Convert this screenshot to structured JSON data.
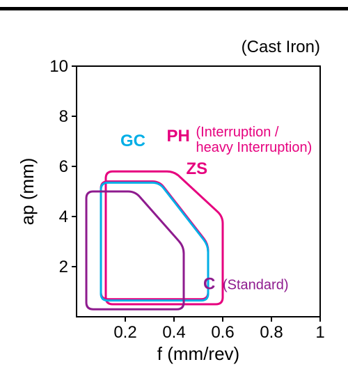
{
  "chart": {
    "type": "region-outline",
    "material_label": "(Cast Iron)",
    "xlabel": "f (mm/rev)",
    "ylabel": "ap (mm)",
    "xlim": [
      0,
      1.0
    ],
    "ylim": [
      0,
      10
    ],
    "xticks": [
      0.2,
      0.4,
      0.6,
      0.8,
      1.0
    ],
    "yticks": [
      2,
      4,
      6,
      8,
      10
    ],
    "axis_fontsize": 26,
    "tick_fontsize": 24,
    "subtitle_fontsize": 24,
    "axis_color": "#000000",
    "background_color": "#ffffff",
    "stroke_width": 3,
    "corner_radius": 10,
    "series": [
      {
        "id": "PH",
        "label": "PH",
        "sublabel": "(Interruption /\nheavy Interruption)",
        "color": "#e6007e",
        "label_pos": {
          "x": 0.37,
          "y": 7.0
        },
        "sublabel_pos": {
          "x": 0.49,
          "y": 7.2
        },
        "polygon": [
          {
            "x": 0.12,
            "y": 0.5
          },
          {
            "x": 0.12,
            "y": 5.8
          },
          {
            "x": 0.4,
            "y": 5.8
          },
          {
            "x": 0.6,
            "y": 4.0
          },
          {
            "x": 0.6,
            "y": 0.5
          }
        ]
      },
      {
        "id": "ZS",
        "label": "ZS",
        "sublabel": "",
        "color": "#e6007e",
        "label_pos": {
          "x": 0.45,
          "y": 5.7
        },
        "polygon": [
          {
            "x": 0.1,
            "y": 0.7
          },
          {
            "x": 0.1,
            "y": 5.4
          },
          {
            "x": 0.34,
            "y": 5.4
          },
          {
            "x": 0.54,
            "y": 2.9
          },
          {
            "x": 0.54,
            "y": 0.7
          }
        ]
      },
      {
        "id": "GC",
        "label": "GC",
        "sublabel": "",
        "color": "#00aee6",
        "label_pos": {
          "x": 0.18,
          "y": 6.8
        },
        "polygon": [
          {
            "x": 0.1,
            "y": 0.65
          },
          {
            "x": 0.1,
            "y": 5.35
          },
          {
            "x": 0.34,
            "y": 5.35
          },
          {
            "x": 0.54,
            "y": 2.85
          },
          {
            "x": 0.54,
            "y": 0.65
          }
        ]
      },
      {
        "id": "C",
        "label": "C",
        "sublabel": "(Standard)",
        "color": "#8e1b8e",
        "label_pos": {
          "x": 0.52,
          "y": 1.1
        },
        "sublabel_pos": {
          "x": 0.6,
          "y": 1.1
        },
        "polygon": [
          {
            "x": 0.04,
            "y": 0.3
          },
          {
            "x": 0.04,
            "y": 5.0
          },
          {
            "x": 0.24,
            "y": 5.0
          },
          {
            "x": 0.44,
            "y": 2.8
          },
          {
            "x": 0.44,
            "y": 0.3
          }
        ]
      }
    ]
  }
}
